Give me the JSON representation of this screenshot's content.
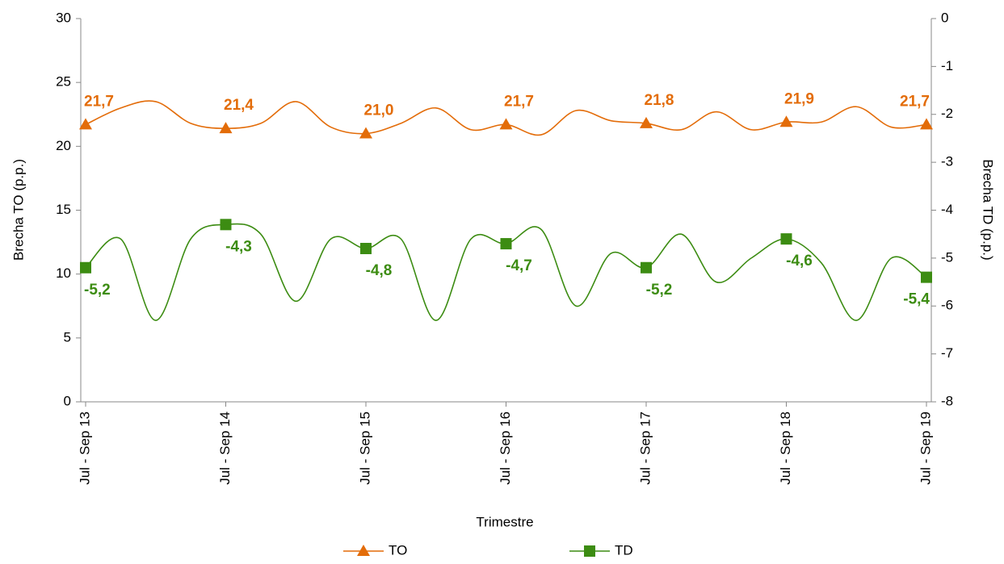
{
  "chart_data": {
    "type": "line",
    "xlabel": "Trimestre",
    "ylabel": "Brecha TO (p.p.)",
    "y2label": "Brecha TD (p.p.)",
    "categories": [
      "Jul - Sep 13",
      null,
      null,
      null,
      "Jul - Sep 14",
      null,
      null,
      null,
      "Jul - Sep 15",
      null,
      null,
      null,
      "Jul - Sep 16",
      null,
      null,
      null,
      "Jul - Sep 17",
      null,
      null,
      null,
      "Jul - Sep 18",
      null,
      null,
      null,
      "Jul - Sep 19"
    ],
    "series": [
      {
        "name": "TO",
        "color": "#e36c09",
        "marker": "triangle",
        "values": [
          21.7,
          23.0,
          23.5,
          21.8,
          21.4,
          21.8,
          23.5,
          21.5,
          21.0,
          21.8,
          23.0,
          21.3,
          21.7,
          20.9,
          22.8,
          22.0,
          21.8,
          21.3,
          22.7,
          21.3,
          21.9,
          21.9,
          23.1,
          21.5,
          21.7
        ],
        "value_labels": [
          "21,7",
          null,
          null,
          null,
          "21,4",
          null,
          null,
          null,
          "21,0",
          null,
          null,
          null,
          "21,7",
          null,
          null,
          null,
          "21,8",
          null,
          null,
          null,
          "21,9",
          null,
          null,
          null,
          "21,7"
        ]
      },
      {
        "name": "TD",
        "color": "#3c8c12",
        "marker": "square",
        "axis": "y2",
        "values": [
          -5.2,
          -4.6,
          -6.3,
          -4.6,
          -4.3,
          -4.5,
          -5.9,
          -4.6,
          -4.8,
          -4.6,
          -6.3,
          -4.6,
          -4.7,
          -4.4,
          -6.0,
          -4.9,
          -5.2,
          -4.5,
          -5.5,
          -5.0,
          -4.6,
          -5.1,
          -6.3,
          -5.0,
          -5.4
        ],
        "value_labels": [
          "-5,2",
          null,
          null,
          null,
          "-4,3",
          null,
          null,
          null,
          "-4,8",
          null,
          null,
          null,
          "-4,7",
          null,
          null,
          null,
          "-5,2",
          null,
          null,
          null,
          "-4,6",
          null,
          null,
          null,
          "-5,4"
        ]
      }
    ],
    "ylim": [
      0,
      30
    ],
    "yticks": [
      0,
      5,
      10,
      15,
      20,
      25,
      30
    ],
    "y2lim": [
      -8,
      0
    ],
    "y2ticks": [
      -8,
      -7,
      -6,
      -5,
      -4,
      -3,
      -2,
      -1,
      0
    ],
    "legend": "bottom",
    "smooth": true
  }
}
